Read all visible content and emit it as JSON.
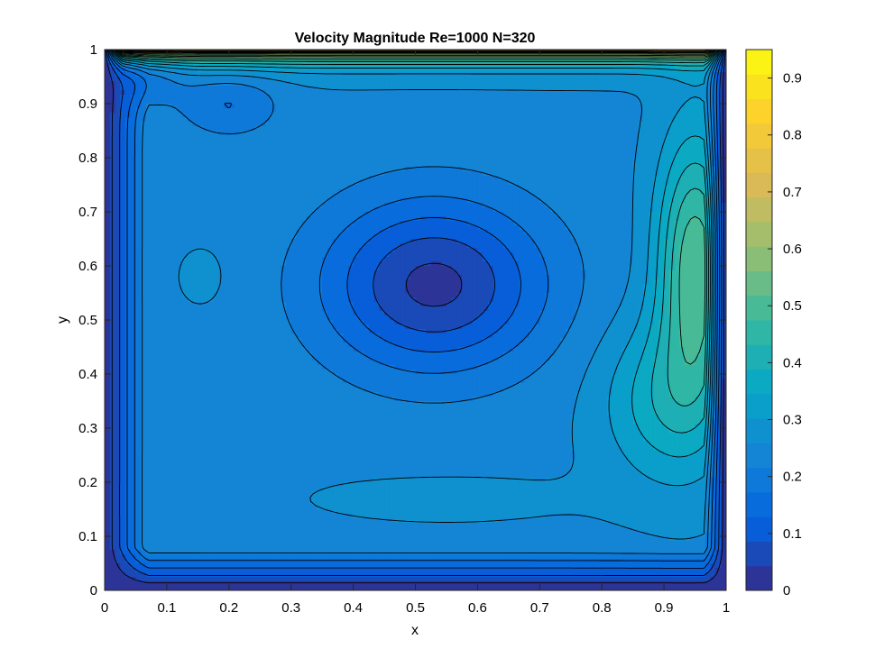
{
  "chart_data": {
    "type": "heatmap",
    "title": "Velocity Magnitude Re=1000 N=320",
    "xlabel": "x",
    "ylabel": "y",
    "xlim": [
      0,
      1
    ],
    "ylim": [
      0,
      1
    ],
    "x_ticks": [
      0,
      0.1,
      0.2,
      0.3,
      0.4,
      0.5,
      0.6,
      0.7,
      0.8,
      0.9,
      1
    ],
    "x_tick_labels": [
      "0",
      "0.1",
      "0.2",
      "0.3",
      "0.4",
      "0.5",
      "0.6",
      "0.7",
      "0.8",
      "0.9",
      "1"
    ],
    "y_ticks": [
      0,
      0.1,
      0.2,
      0.3,
      0.4,
      0.5,
      0.6,
      0.7,
      0.8,
      0.9,
      1
    ],
    "y_tick_labels": [
      "0",
      "0.1",
      "0.2",
      "0.3",
      "0.4",
      "0.5",
      "0.6",
      "0.7",
      "0.8",
      "0.9",
      "1"
    ],
    "colorbar": {
      "range": [
        0,
        0.95
      ],
      "ticks": [
        0,
        0.1,
        0.2,
        0.3,
        0.4,
        0.5,
        0.6,
        0.7,
        0.8,
        0.9
      ],
      "tick_labels": [
        "0",
        "0.1",
        "0.2",
        "0.3",
        "0.4",
        "0.5",
        "0.6",
        "0.7",
        "0.8",
        "0.9"
      ],
      "colormap": "parula"
    },
    "contour_line_color": "#000000",
    "colormap_stops": [
      "#352a87",
      "#0363e1",
      "#1485d4",
      "#06a7c6",
      "#38b99e",
      "#92bf73",
      "#d9ba56",
      "#fcce2e",
      "#f9fb0e"
    ],
    "features": {
      "primary_vortex_center": [
        0.53,
        0.565
      ],
      "left_secondary_extremum": [
        0.16,
        0.58
      ],
      "bottom_band_extremum": [
        0.55,
        0.17
      ],
      "right_wall_high": [
        0.95,
        0.6
      ],
      "lid_velocity_y": 1
    }
  }
}
